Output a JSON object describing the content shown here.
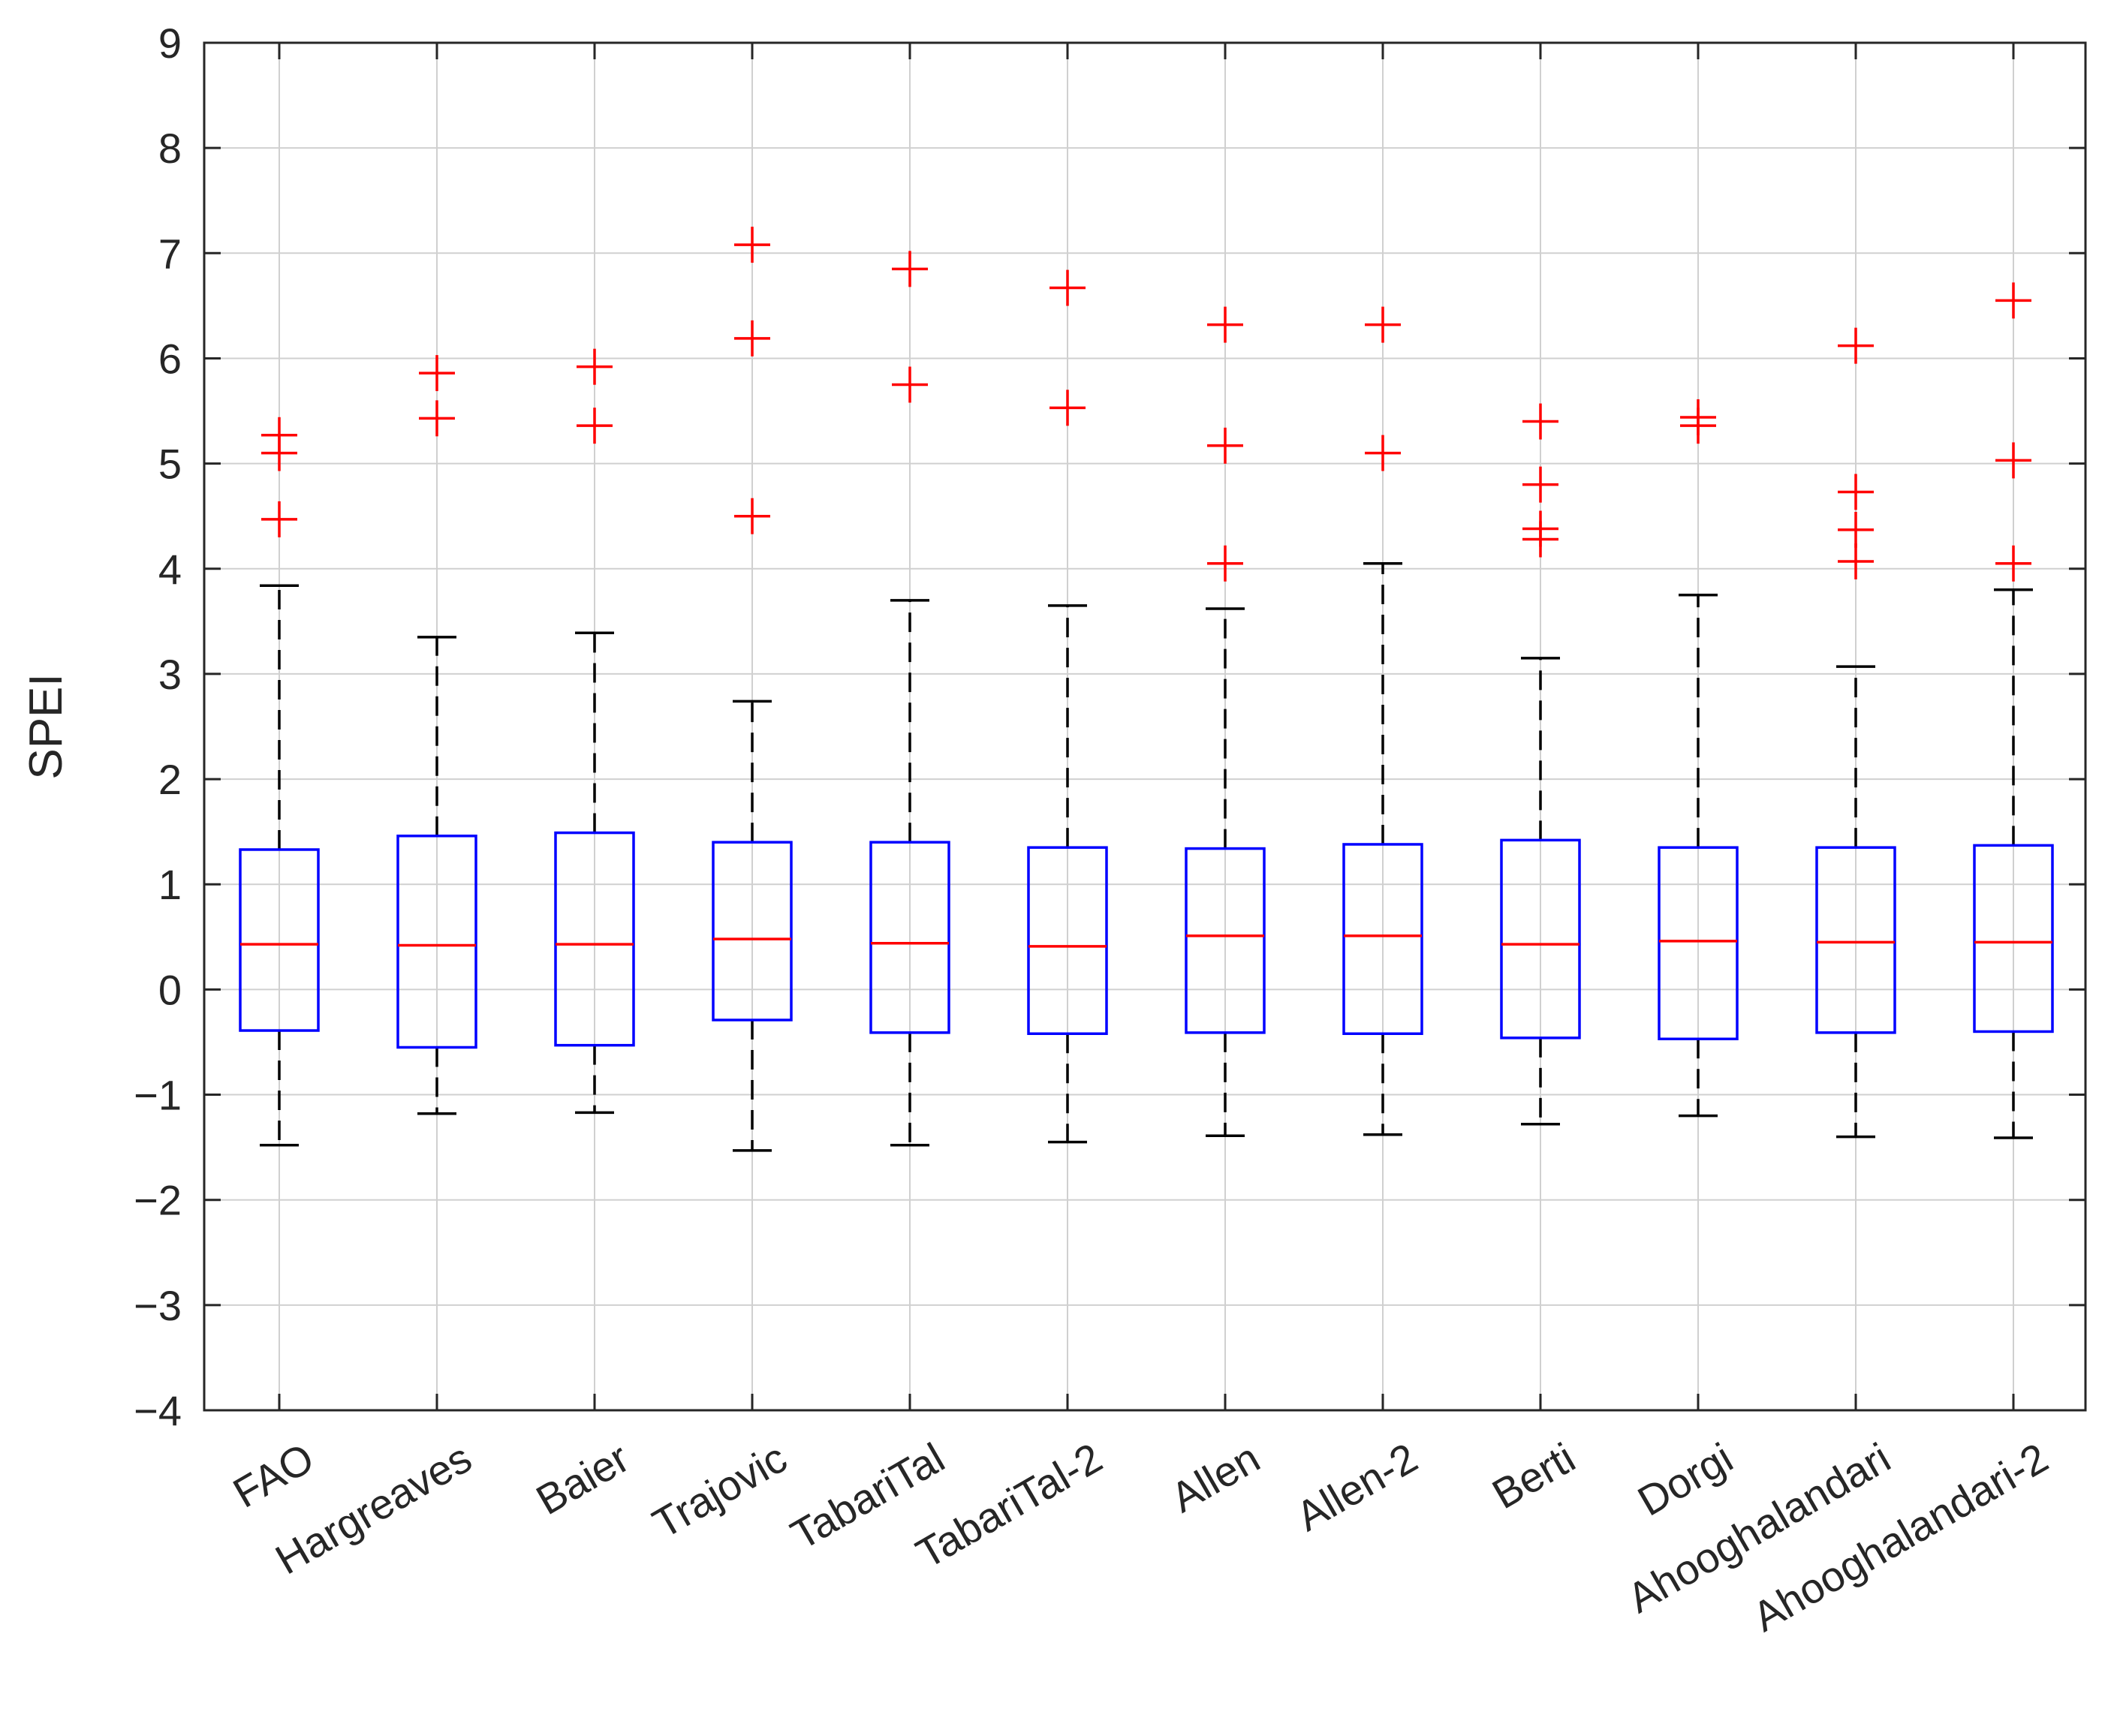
{
  "chart_data": {
    "type": "boxplot",
    "title": "",
    "xlabel": "",
    "ylabel": "SPEI",
    "ylim": [
      -4,
      9
    ],
    "yticks": [
      -4,
      -3,
      -2,
      -1,
      0,
      1,
      2,
      3,
      4,
      5,
      6,
      7,
      8,
      9
    ],
    "ytick_labels": [
      "−4",
      "−3",
      "−2",
      "−1",
      "0",
      "1",
      "2",
      "3",
      "4",
      "5",
      "6",
      "7",
      "8",
      "9"
    ],
    "grid": true,
    "colors": {
      "box": "#0000ff",
      "median": "#ff0000",
      "outlier": "#ff0000",
      "whisker": "#000000",
      "grid": "#d0d0d0",
      "axis": "#262626"
    },
    "categories": [
      "FAO",
      "Hargreaves",
      "Baier",
      "Trajovic",
      "TabariTal",
      "TabariTal-2",
      "Allen",
      "Allen-2",
      "Berti",
      "Dorgi",
      "Ahooghalandari",
      "Ahooghalandari-2"
    ],
    "boxes": [
      {
        "name": "FAO",
        "whisker_low": -1.48,
        "q1": -0.39,
        "median": 0.43,
        "q3": 1.33,
        "whisker_high": 3.84,
        "outliers": [
          4.47,
          5.1,
          5.27
        ]
      },
      {
        "name": "Hargreaves",
        "whisker_low": -1.18,
        "q1": -0.55,
        "median": 0.42,
        "q3": 1.46,
        "whisker_high": 3.35,
        "outliers": [
          5.43,
          5.86
        ]
      },
      {
        "name": "Baier",
        "whisker_low": -1.17,
        "q1": -0.53,
        "median": 0.43,
        "q3": 1.49,
        "whisker_high": 3.39,
        "outliers": [
          5.36,
          5.92
        ]
      },
      {
        "name": "Trajovic",
        "whisker_low": -1.53,
        "q1": -0.29,
        "median": 0.48,
        "q3": 1.4,
        "whisker_high": 2.74,
        "outliers": [
          4.5,
          6.19,
          7.08
        ]
      },
      {
        "name": "TabariTal",
        "whisker_low": -1.48,
        "q1": -0.41,
        "median": 0.44,
        "q3": 1.4,
        "whisker_high": 3.7,
        "outliers": [
          5.75,
          6.85
        ]
      },
      {
        "name": "TabariTal-2",
        "whisker_low": -1.45,
        "q1": -0.42,
        "median": 0.41,
        "q3": 1.35,
        "whisker_high": 3.65,
        "outliers": [
          5.53,
          6.67
        ]
      },
      {
        "name": "Allen",
        "whisker_low": -1.39,
        "q1": -0.41,
        "median": 0.51,
        "q3": 1.34,
        "whisker_high": 3.62,
        "outliers": [
          4.05,
          5.17,
          6.32
        ]
      },
      {
        "name": "Allen-2",
        "whisker_low": -1.38,
        "q1": -0.42,
        "median": 0.51,
        "q3": 1.38,
        "whisker_high": 4.05,
        "outliers": [
          5.1,
          6.32
        ]
      },
      {
        "name": "Berti",
        "whisker_low": -1.28,
        "q1": -0.46,
        "median": 0.43,
        "q3": 1.42,
        "whisker_high": 3.15,
        "outliers": [
          4.28,
          4.38,
          4.8,
          5.4
        ]
      },
      {
        "name": "Dorgi",
        "whisker_low": -1.2,
        "q1": -0.47,
        "median": 0.46,
        "q3": 1.35,
        "whisker_high": 3.75,
        "outliers": [
          5.36,
          5.44
        ]
      },
      {
        "name": "Ahooghalandari",
        "whisker_low": -1.4,
        "q1": -0.41,
        "median": 0.45,
        "q3": 1.35,
        "whisker_high": 3.07,
        "outliers": [
          4.07,
          4.37,
          4.73,
          6.12
        ]
      },
      {
        "name": "Ahooghalandari-2",
        "whisker_low": -1.41,
        "q1": -0.4,
        "median": 0.45,
        "q3": 1.37,
        "whisker_high": 3.8,
        "outliers": [
          4.05,
          5.03,
          6.55
        ]
      }
    ]
  }
}
